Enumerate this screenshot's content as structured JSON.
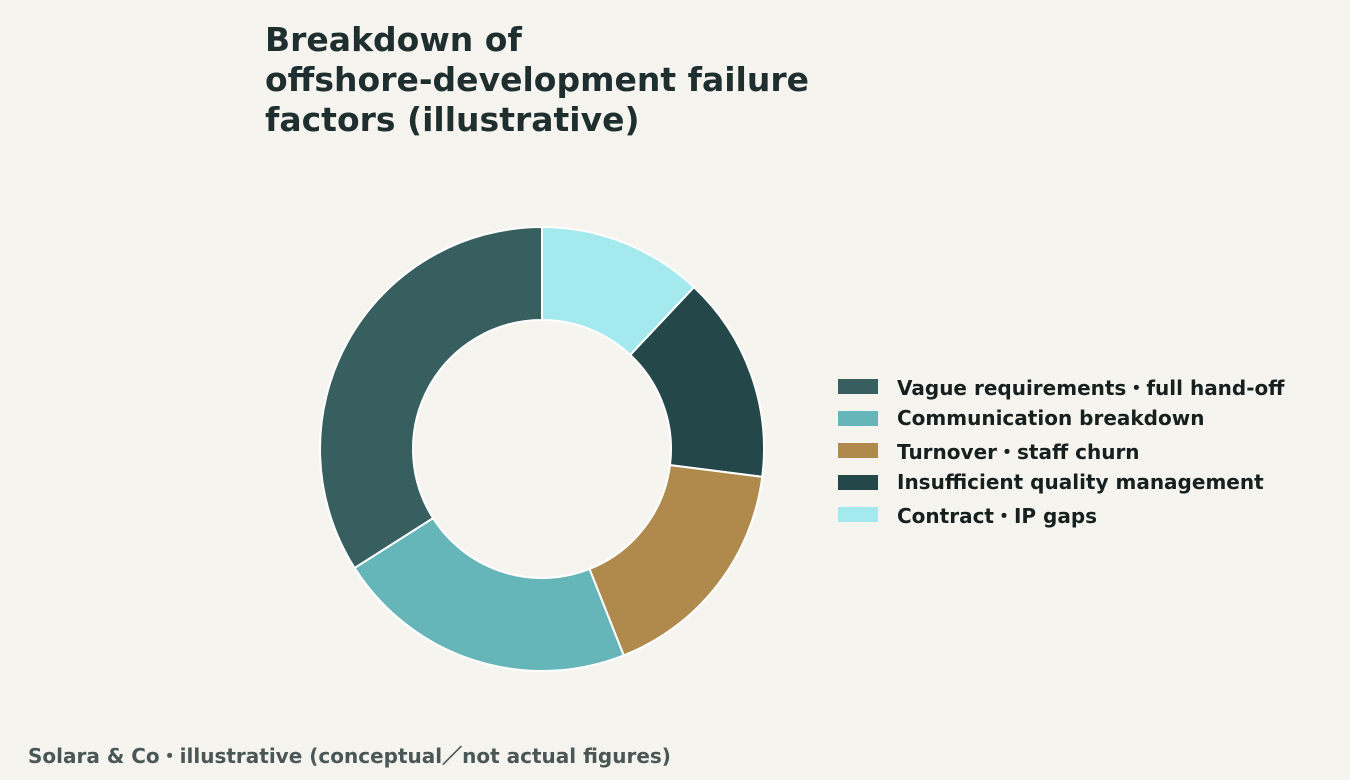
{
  "chart_data": {
    "type": "pie",
    "title": "Breakdown of\noffshore-development failure\nfactors (illustrative)",
    "categories": [
      "Vague requirements・full hand-off",
      "Communication breakdown",
      "Turnover・staff churn",
      "Insufficient quality management",
      "Contract・IP gaps"
    ],
    "values": [
      34,
      22,
      17,
      15,
      12
    ],
    "colors": [
      "#375f5f",
      "#66b5b9",
      "#b08a4d",
      "#24484a",
      "#a3e9ee"
    ],
    "legend_position": "right",
    "donut": true
  },
  "footer": "Solara & Co・illustrative (conceptual／not actual figures)"
}
